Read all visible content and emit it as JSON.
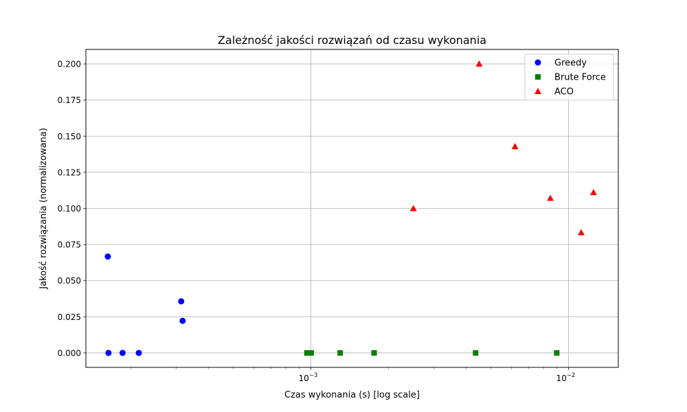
{
  "chart_data": {
    "type": "scatter",
    "title": "Zależność jakości rozwiązań od czasu wykonania",
    "xlabel": "Czas wykonania (s) [log scale]",
    "ylabel": "Jakość rozwiązania (normalizowana)",
    "x_scale": "log",
    "xlim": [
      0.000134,
      0.0156
    ],
    "ylim": [
      -0.01,
      0.21
    ],
    "x_ticks": [
      {
        "value": 0.001,
        "base": "10",
        "exp": "−3"
      },
      {
        "value": 0.01,
        "base": "10",
        "exp": "−2"
      }
    ],
    "y_ticks": [
      {
        "value": 0.0,
        "label": "0.000"
      },
      {
        "value": 0.025,
        "label": "0.025"
      },
      {
        "value": 0.05,
        "label": "0.050"
      },
      {
        "value": 0.075,
        "label": "0.075"
      },
      {
        "value": 0.1,
        "label": "0.100"
      },
      {
        "value": 0.125,
        "label": "0.125"
      },
      {
        "value": 0.15,
        "label": "0.150"
      },
      {
        "value": 0.175,
        "label": "0.175"
      },
      {
        "value": 0.2,
        "label": "0.200"
      }
    ],
    "grid": true,
    "legend_position": "top-right",
    "series": [
      {
        "name": "Greedy",
        "marker": "circle",
        "color": "#0000ff",
        "points": [
          {
            "x": 0.000163,
            "y": 0.0667
          },
          {
            "x": 0.000164,
            "y": 0.0
          },
          {
            "x": 0.000186,
            "y": 0.0
          },
          {
            "x": 0.000215,
            "y": 0.0
          },
          {
            "x": 0.000314,
            "y": 0.0357
          },
          {
            "x": 0.000318,
            "y": 0.0222
          }
        ]
      },
      {
        "name": "Brute Force",
        "marker": "square",
        "color": "#008000",
        "points": [
          {
            "x": 0.000966,
            "y": 0.0
          },
          {
            "x": 0.001003,
            "y": 0.0
          },
          {
            "x": 0.0013,
            "y": 0.0
          },
          {
            "x": 0.00176,
            "y": 0.0
          },
          {
            "x": 0.00436,
            "y": 0.0
          },
          {
            "x": 0.009,
            "y": 0.0
          }
        ]
      },
      {
        "name": "ACO",
        "marker": "triangle",
        "color": "#ff0000",
        "points": [
          {
            "x": 0.0025,
            "y": 0.1
          },
          {
            "x": 0.0045,
            "y": 0.2
          },
          {
            "x": 0.0062,
            "y": 0.1429
          },
          {
            "x": 0.0085,
            "y": 0.1071
          },
          {
            "x": 0.0112,
            "y": 0.0833
          },
          {
            "x": 0.0125,
            "y": 0.1111
          }
        ]
      }
    ]
  }
}
